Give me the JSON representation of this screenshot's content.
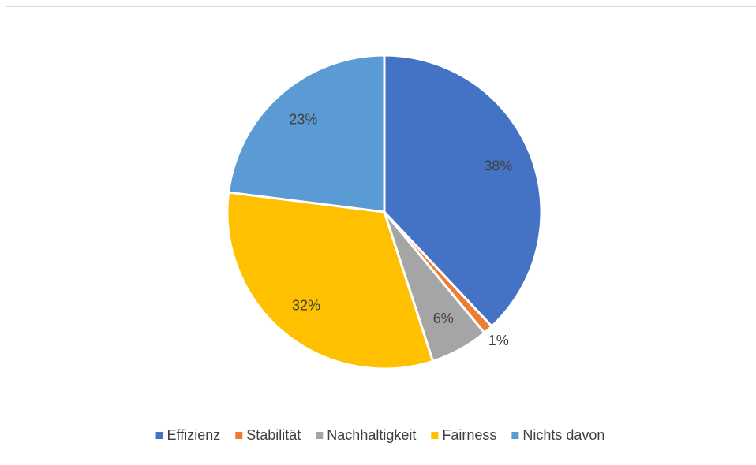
{
  "chart_data": {
    "type": "pie",
    "categories": [
      "Effizienz",
      "Stabilität",
      "Nachhaltigkeit",
      "Fairness",
      "Nichts davon"
    ],
    "values": [
      38,
      1,
      6,
      32,
      23
    ],
    "value_labels": [
      "38%",
      "1%",
      "6%",
      "32%",
      "23%"
    ],
    "colors": [
      "#4472c4",
      "#ed7d31",
      "#a5a5a5",
      "#ffc000",
      "#5b9bd5"
    ],
    "legend": "bottom"
  }
}
